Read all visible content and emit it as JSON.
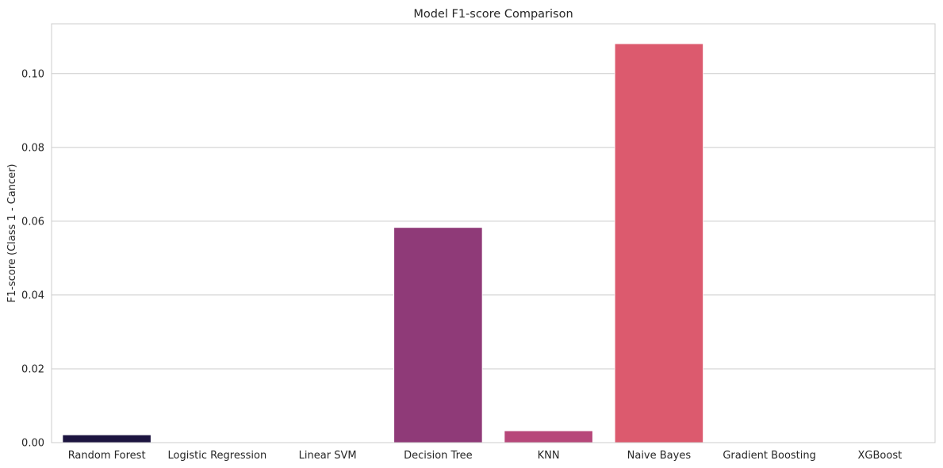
{
  "chart_data": {
    "type": "bar",
    "title": "Model F1-score Comparison",
    "xlabel": "",
    "ylabel": "F1-score (Class 1 - Cancer)",
    "categories": [
      "Random Forest",
      "Logistic Regression",
      "Linear SVM",
      "Decision Tree",
      "KNN",
      "Naive Bayes",
      "Gradient Boosting",
      "XGBoost"
    ],
    "values": [
      0.0021,
      0.0,
      0.0,
      0.0583,
      0.0032,
      0.1081,
      0.0,
      0.0
    ],
    "colors": [
      "#1d1540",
      "#3e1b5e",
      "#65216e",
      "#8f3a78",
      "#b7477a",
      "#dc5a6e",
      "#ee7b6e",
      "#f5a183"
    ],
    "ylim": [
      0,
      0.1135
    ],
    "yticks": [
      0.0,
      0.02,
      0.04,
      0.06,
      0.08,
      0.1
    ],
    "ytick_labels": [
      "0.00",
      "0.02",
      "0.04",
      "0.06",
      "0.08",
      "0.10"
    ],
    "grid": true,
    "legend": "none"
  }
}
